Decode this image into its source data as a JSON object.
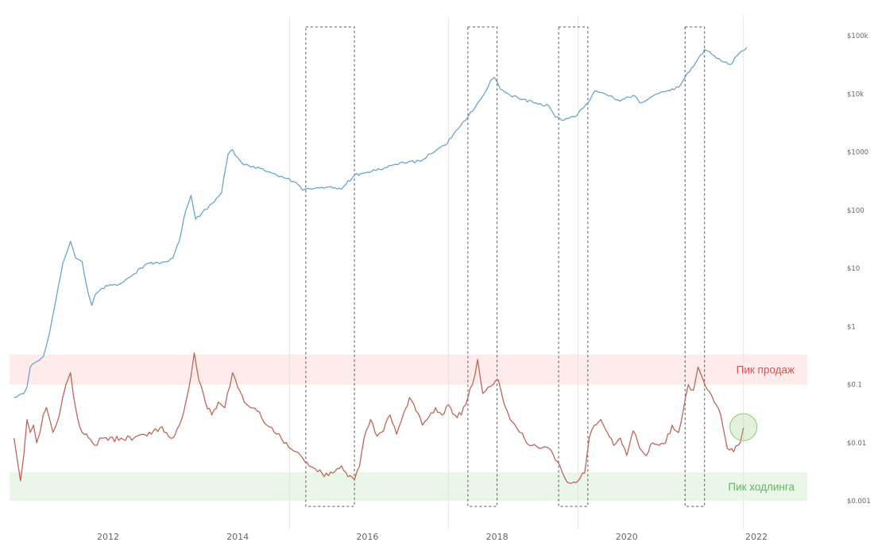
{
  "chart_data": {
    "type": "line",
    "title": "",
    "xlabel": "",
    "ylabel": "",
    "xlim": [
      2010.5,
      2023.0
    ],
    "x_ticks": [
      {
        "value": 2012,
        "label": "2012"
      },
      {
        "value": 2014,
        "label": "2014"
      },
      {
        "value": 2016,
        "label": "2016"
      },
      {
        "value": 2018,
        "label": "2018"
      },
      {
        "value": 2020,
        "label": "2020"
      },
      {
        "value": 2022,
        "label": "2022"
      }
    ],
    "y_scale": "log",
    "y_ticks_right": [
      {
        "value": 100000,
        "label": "$100k"
      },
      {
        "value": 10000,
        "label": "$10k"
      },
      {
        "value": 1000,
        "label": "$1000"
      },
      {
        "value": 100,
        "label": "$100"
      },
      {
        "value": 10,
        "label": "$10"
      },
      {
        "value": 1,
        "label": "$1"
      },
      {
        "value": 0.1,
        "label": "$0.1"
      },
      {
        "value": 0.01,
        "label": "$0.01"
      },
      {
        "value": 0.001,
        "label": "$0.001"
      }
    ],
    "vertical_gridlines_at": [
      2019.25,
      2014.8,
      2017.25,
      2021.8
    ],
    "highlight_boxes": [
      {
        "x_start": 2015.05,
        "x_end": 2015.8
      },
      {
        "x_start": 2017.55,
        "x_end": 2018.0
      },
      {
        "x_start": 2018.95,
        "x_end": 2019.4
      },
      {
        "x_start": 2020.9,
        "x_end": 2021.2
      }
    ],
    "zones": [
      {
        "label": "Пик продаж",
        "y_low": 0.1,
        "y_high": 0.33,
        "fill": "#fdeceb",
        "text_color": "#d9534f"
      },
      {
        "label": "Пик ходлинга",
        "y_low": 0.001,
        "y_high": 0.0031,
        "fill": "#eaf6e8",
        "text_color": "#5cb85c"
      }
    ],
    "current_marker": {
      "x": 2021.8,
      "y": 0.0185,
      "color": "#8cc975"
    },
    "series": [
      {
        "color": "#6aa6cc",
        "x": [
          2010.55,
          2010.62,
          2010.7,
          2010.75,
          2010.8,
          2010.9,
          2011.0,
          2011.1,
          2011.2,
          2011.3,
          2011.35,
          2011.42,
          2011.5,
          2011.6,
          2011.7,
          2011.75,
          2011.8,
          2011.9,
          2012.0,
          2012.2,
          2012.4,
          2012.6,
          2012.8,
          2013.0,
          2013.1,
          2013.2,
          2013.28,
          2013.35,
          2013.45,
          2013.6,
          2013.75,
          2013.85,
          2013.92,
          2014.0,
          2014.1,
          2014.2,
          2014.35,
          2014.5,
          2014.6,
          2014.75,
          2014.9,
          2015.0,
          2015.05,
          2015.2,
          2015.4,
          2015.6,
          2015.8,
          2016.0,
          2016.2,
          2016.4,
          2016.5,
          2016.6,
          2016.8,
          2017.0,
          2017.2,
          2017.4,
          2017.55,
          2017.7,
          2017.8,
          2017.9,
          2017.96,
          2018.05,
          2018.2,
          2018.4,
          2018.6,
          2018.8,
          2018.9,
          2019.0,
          2019.2,
          2019.4,
          2019.5,
          2019.7,
          2019.9,
          2020.1,
          2020.2,
          2020.4,
          2020.6,
          2020.8,
          2021.0,
          2021.1,
          2021.2,
          2021.35,
          2021.5,
          2021.6,
          2021.7,
          2021.85
        ],
        "y": [
          0.06,
          0.065,
          0.07,
          0.09,
          0.2,
          0.25,
          0.3,
          0.8,
          3,
          12,
          17,
          29,
          15,
          13,
          3.5,
          2.3,
          3.5,
          4.5,
          5,
          5.5,
          8,
          12,
          12,
          15,
          30,
          100,
          180,
          70,
          90,
          130,
          200,
          900,
          1100,
          800,
          600,
          550,
          520,
          450,
          400,
          350,
          300,
          220,
          230,
          240,
          250,
          230,
          400,
          450,
          500,
          600,
          650,
          640,
          700,
          950,
          1300,
          2500,
          4000,
          7000,
          10000,
          17000,
          19000,
          12000,
          9500,
          8000,
          7000,
          6200,
          4000,
          3500,
          4000,
          7000,
          11000,
          9500,
          7500,
          9500,
          7000,
          9200,
          11000,
          13000,
          28000,
          40000,
          58000,
          45000,
          35000,
          32000,
          45000,
          63000
        ]
      },
      {
        "color": "#c0655a",
        "x": [
          2010.55,
          2010.6,
          2010.65,
          2010.7,
          2010.75,
          2010.8,
          2010.85,
          2010.9,
          2010.95,
          2011.0,
          2011.05,
          2011.1,
          2011.15,
          2011.2,
          2011.25,
          2011.3,
          2011.35,
          2011.42,
          2011.47,
          2011.52,
          2011.6,
          2011.7,
          2011.8,
          2011.9,
          2012.0,
          2012.2,
          2012.4,
          2012.6,
          2012.8,
          2012.9,
          2013.0,
          2013.1,
          2013.2,
          2013.28,
          2013.33,
          2013.4,
          2013.5,
          2013.6,
          2013.7,
          2013.8,
          2013.92,
          2014.0,
          2014.1,
          2014.2,
          2014.3,
          2014.45,
          2014.6,
          2014.75,
          2014.9,
          2015.0,
          2015.1,
          2015.2,
          2015.3,
          2015.4,
          2015.5,
          2015.6,
          2015.7,
          2015.8,
          2015.88,
          2015.95,
          2016.05,
          2016.15,
          2016.25,
          2016.35,
          2016.45,
          2016.55,
          2016.65,
          2016.75,
          2016.85,
          2016.95,
          2017.05,
          2017.15,
          2017.25,
          2017.35,
          2017.45,
          2017.55,
          2017.62,
          2017.7,
          2017.78,
          2017.86,
          2017.94,
          2018.02,
          2018.1,
          2018.2,
          2018.35,
          2018.5,
          2018.65,
          2018.8,
          2018.9,
          2019.0,
          2019.05,
          2019.15,
          2019.25,
          2019.35,
          2019.42,
          2019.5,
          2019.6,
          2019.7,
          2019.8,
          2019.9,
          2020.0,
          2020.1,
          2020.2,
          2020.3,
          2020.4,
          2020.5,
          2020.6,
          2020.7,
          2020.8,
          2020.88,
          2020.95,
          2021.03,
          2021.1,
          2021.18,
          2021.25,
          2021.35,
          2021.45,
          2021.55,
          2021.65,
          2021.75,
          2021.8
        ],
        "y": [
          0.012,
          0.005,
          0.0022,
          0.006,
          0.025,
          0.015,
          0.02,
          0.01,
          0.015,
          0.03,
          0.04,
          0.025,
          0.015,
          0.02,
          0.03,
          0.06,
          0.1,
          0.16,
          0.06,
          0.03,
          0.015,
          0.012,
          0.009,
          0.012,
          0.011,
          0.012,
          0.012,
          0.013,
          0.018,
          0.015,
          0.012,
          0.02,
          0.05,
          0.14,
          0.35,
          0.12,
          0.05,
          0.03,
          0.05,
          0.04,
          0.16,
          0.09,
          0.05,
          0.04,
          0.035,
          0.02,
          0.014,
          0.01,
          0.007,
          0.0055,
          0.004,
          0.0035,
          0.003,
          0.0027,
          0.0032,
          0.004,
          0.0026,
          0.0023,
          0.004,
          0.012,
          0.025,
          0.013,
          0.016,
          0.03,
          0.014,
          0.03,
          0.06,
          0.035,
          0.02,
          0.028,
          0.04,
          0.03,
          0.045,
          0.03,
          0.03,
          0.06,
          0.1,
          0.27,
          0.07,
          0.09,
          0.1,
          0.12,
          0.05,
          0.025,
          0.015,
          0.009,
          0.008,
          0.008,
          0.005,
          0.0032,
          0.0024,
          0.002,
          0.0022,
          0.003,
          0.012,
          0.02,
          0.025,
          0.015,
          0.009,
          0.012,
          0.006,
          0.016,
          0.008,
          0.006,
          0.01,
          0.009,
          0.01,
          0.02,
          0.015,
          0.04,
          0.1,
          0.08,
          0.2,
          0.12,
          0.08,
          0.05,
          0.03,
          0.008,
          0.007,
          0.01,
          0.018
        ]
      }
    ]
  }
}
